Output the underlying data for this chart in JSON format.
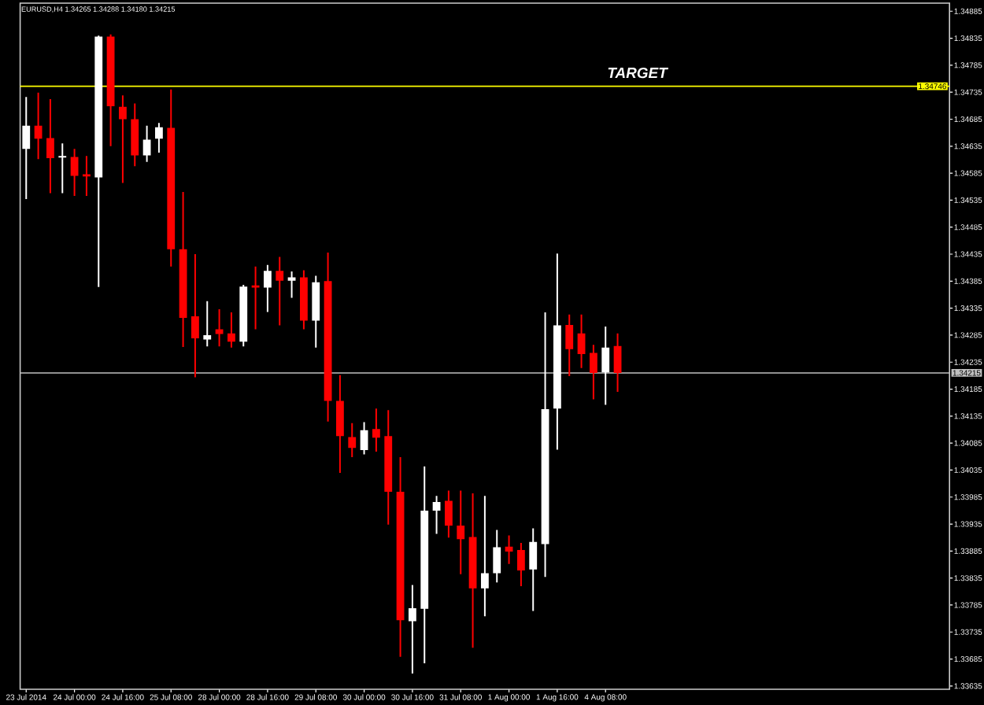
{
  "chart_data": {
    "type": "candlestick",
    "title": "EURUSD,H4 1.34265 1.34288 1.34180 1.34215",
    "categories": [
      "23 Jul 2014",
      null,
      null,
      null,
      "24 Jul 00:00",
      null,
      null,
      null,
      "24 Jul 16:00",
      null,
      null,
      null,
      "25 Jul 08:00",
      null,
      null,
      null,
      "28 Jul 00:00",
      null,
      null,
      null,
      "28 Jul 16:00",
      null,
      null,
      null,
      "29 Jul 08:00",
      null,
      null,
      null,
      "30 Jul 00:00",
      null,
      null,
      null,
      "30 Jul 16:00",
      null,
      null,
      null,
      "31 Jul 08:00",
      null,
      null,
      null,
      "1 Aug 00:00",
      null,
      null,
      null,
      "1 Aug 16:00",
      null,
      null,
      null,
      "4 Aug 08:00",
      null,
      null,
      null,
      null,
      null,
      null,
      null,
      null,
      null,
      null,
      null,
      null,
      null,
      null,
      null,
      null,
      null,
      null,
      null,
      null,
      null,
      null,
      null,
      null,
      null,
      null,
      null,
      null
    ],
    "ohlc": [
      [
        1.3463,
        1.34726,
        1.34537,
        1.34673
      ],
      [
        1.34673,
        1.34734,
        1.34611,
        1.34649
      ],
      [
        1.3465,
        1.34722,
        1.34548,
        1.34613
      ],
      [
        1.34614,
        1.3464,
        1.34548,
        1.34617
      ],
      [
        1.34615,
        1.3463,
        1.34543,
        1.3458
      ],
      [
        1.34583,
        1.34617,
        1.34543,
        1.34579
      ],
      [
        1.34577,
        1.3484,
        1.34374,
        1.34838
      ],
      [
        1.34838,
        1.34842,
        1.34635,
        1.34709
      ],
      [
        1.34708,
        1.34729,
        1.34567,
        1.34685
      ],
      [
        1.34685,
        1.34714,
        1.34598,
        1.34618
      ],
      [
        1.34618,
        1.34673,
        1.34606,
        1.34647
      ],
      [
        1.34649,
        1.34678,
        1.34623,
        1.3467
      ],
      [
        1.34669,
        1.3474,
        1.34412,
        1.34444
      ],
      [
        1.34444,
        1.3455,
        1.34263,
        1.34317
      ],
      [
        1.3432,
        1.34435,
        1.34207,
        1.34279
      ],
      [
        1.34277,
        1.34348,
        1.34264,
        1.34285
      ],
      [
        1.34296,
        1.34333,
        1.34264,
        1.34287
      ],
      [
        1.34288,
        1.34327,
        1.34262,
        1.34273
      ],
      [
        1.34273,
        1.34378,
        1.34264,
        1.34375
      ],
      [
        1.34377,
        1.34412,
        1.34296,
        1.34373
      ],
      [
        1.34373,
        1.34415,
        1.34328,
        1.34404
      ],
      [
        1.34404,
        1.3443,
        1.34303,
        1.34386
      ],
      [
        1.34386,
        1.34403,
        1.34354,
        1.34392
      ],
      [
        1.34392,
        1.34405,
        1.34296,
        1.34312
      ],
      [
        1.34312,
        1.34395,
        1.34262,
        1.34383
      ],
      [
        1.34385,
        1.34438,
        1.34125,
        1.34163
      ],
      [
        1.34163,
        1.34211,
        1.3403,
        1.34098
      ],
      [
        1.34096,
        1.34122,
        1.34059,
        1.34076
      ],
      [
        1.34072,
        1.34124,
        1.34064,
        1.34109
      ],
      [
        1.34111,
        1.34149,
        1.34069,
        1.34095
      ],
      [
        1.34098,
        1.34146,
        1.33934,
        1.33995
      ],
      [
        1.33995,
        1.34059,
        1.33689,
        1.33757
      ],
      [
        1.33755,
        1.33822,
        1.33658,
        1.33779
      ],
      [
        1.33778,
        1.34042,
        1.33677,
        1.3396
      ],
      [
        1.3396,
        1.33987,
        1.33917,
        1.33976
      ],
      [
        1.33978,
        1.33997,
        1.3391,
        1.33932
      ],
      [
        1.33932,
        1.33997,
        1.33842,
        1.33907
      ],
      [
        1.33911,
        1.33992,
        1.33706,
        1.33816
      ],
      [
        1.33816,
        1.33987,
        1.33764,
        1.33844
      ],
      [
        1.33844,
        1.33924,
        1.33827,
        1.33892
      ],
      [
        1.33893,
        1.33914,
        1.33861,
        1.33884
      ],
      [
        1.33887,
        1.339,
        1.3382,
        1.33849
      ],
      [
        1.33851,
        1.33927,
        1.33774,
        1.33902
      ],
      [
        1.33898,
        1.34327,
        1.33837,
        1.34148
      ],
      [
        1.34149,
        1.34436,
        1.34073,
        1.34303
      ],
      [
        1.34304,
        1.34323,
        1.34209,
        1.34259
      ],
      [
        1.34288,
        1.34323,
        1.34224,
        1.3425
      ],
      [
        1.34252,
        1.34267,
        1.34166,
        1.34215
      ],
      [
        1.34216,
        1.34301,
        1.34156,
        1.34262
      ],
      [
        1.34265,
        1.34288,
        1.3418,
        1.34215
      ],
      null,
      null,
      null,
      null,
      null,
      null,
      null,
      null,
      null,
      null,
      null,
      null,
      null,
      null,
      null,
      null,
      null,
      null,
      null,
      null,
      null,
      null,
      null,
      null,
      null,
      null,
      null
    ],
    "colors": [
      "#ffffff",
      "#ff0000",
      "#ff0000",
      "#ffffff",
      "#ff0000",
      "#ff0000",
      "#ffffff",
      "#ff0000",
      "#ff0000",
      "#ff0000",
      "#ffffff",
      "#ffffff",
      "#ff0000",
      "#ff0000",
      "#ff0000",
      "#ffffff",
      "#ff0000",
      "#ff0000",
      "#ffffff",
      "#ff0000",
      "#ffffff",
      "#ff0000",
      "#ffffff",
      "#ff0000",
      "#ffffff",
      "#ff0000",
      "#ff0000",
      "#ff0000",
      "#ffffff",
      "#ff0000",
      "#ff0000",
      "#ff0000",
      "#ffffff",
      "#ffffff",
      "#ffffff",
      "#ff0000",
      "#ff0000",
      "#ff0000",
      "#ffffff",
      "#ffffff",
      "#ff0000",
      "#ff0000",
      "#ffffff",
      "#ffffff",
      "#ffffff",
      "#ff0000",
      "#ff0000",
      "#ff0000",
      "#ffffff",
      "#ff0000",
      null,
      null,
      null,
      null,
      null,
      null,
      null,
      null,
      null,
      null,
      null,
      null,
      null,
      null,
      null,
      null,
      null,
      null,
      null,
      null,
      null,
      null,
      null,
      null,
      null,
      null,
      null
    ],
    "ylim": [
      1.33629,
      1.349
    ],
    "yticks": [
      1.33635,
      1.33685,
      1.33735,
      1.33785,
      1.33835,
      1.33885,
      1.33935,
      1.33985,
      1.34035,
      1.34085,
      1.34135,
      1.34185,
      1.34235,
      1.34285,
      1.34335,
      1.34385,
      1.34435,
      1.34485,
      1.34535,
      1.34585,
      1.34635,
      1.34685,
      1.34735,
      1.34785,
      1.34835,
      1.34885
    ],
    "ref_lines": [
      {
        "axis": "y",
        "value": 1.34746,
        "label": "TARGET",
        "color": "#ffff00"
      },
      {
        "axis": "y",
        "value": 1.34215,
        "label": "1.34215",
        "color": "#c0c0c0"
      }
    ],
    "annotations": [
      {
        "text": "1.34746",
        "y": 1.34746
      }
    ]
  }
}
